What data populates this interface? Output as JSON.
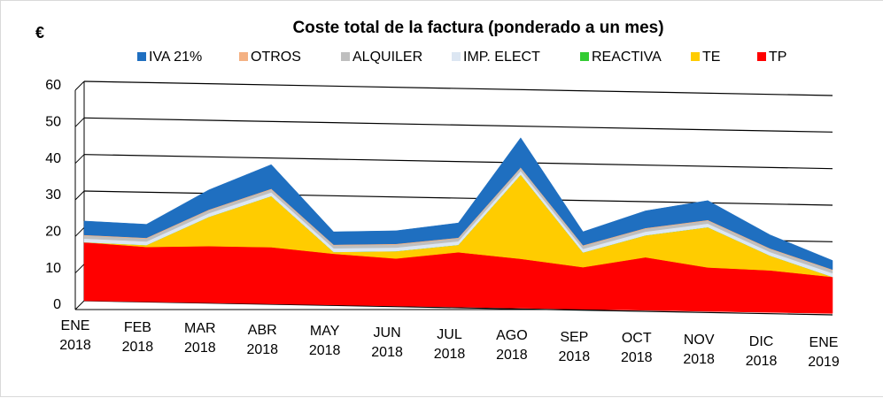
{
  "chart_data": {
    "type": "area",
    "stacked": true,
    "title": "Coste total de la factura (ponderado a un mes)",
    "y_label": "€",
    "categories": [
      "ENE 2018",
      "FEB 2018",
      "MAR 2018",
      "ABR 2018",
      "MAY 2018",
      "JUN 2018",
      "JUL 2018",
      "AGO 2018",
      "SEP 2018",
      "OCT 2018",
      "NOV 2018",
      "DIC 2018",
      "ENE 2019"
    ],
    "series": [
      {
        "name": "IVA 21%",
        "color": "#1f6fc0",
        "values": [
          3.8,
          3.7,
          5.4,
          6.6,
          3.5,
          3.6,
          4.0,
          8.1,
          3.7,
          4.7,
          5.3,
          3.7,
          2.5
        ]
      },
      {
        "name": "OTROS",
        "color": "#f4b183",
        "values": [
          0.2,
          0.2,
          0.2,
          0.2,
          0.2,
          0.2,
          0.2,
          0.2,
          0.2,
          0.2,
          0.2,
          0.2,
          0.2
        ]
      },
      {
        "name": "ALQUILER",
        "color": "#bfbfbf",
        "values": [
          0.8,
          0.8,
          0.8,
          0.8,
          0.8,
          0.8,
          0.8,
          0.8,
          0.8,
          0.8,
          0.8,
          0.8,
          0.8
        ]
      },
      {
        "name": "IMP. ELECT",
        "color": "#dce6f2",
        "values": [
          1.0,
          1.0,
          1.0,
          1.0,
          1.0,
          1.0,
          1.0,
          1.0,
          1.0,
          1.0,
          1.0,
          1.0,
          1.0
        ]
      },
      {
        "name": "REACTIVA",
        "color": "#33cc33",
        "values": [
          0,
          0,
          0,
          0,
          0,
          0,
          0,
          0,
          0,
          0,
          0,
          0,
          0
        ]
      },
      {
        "name": "TE",
        "color": "#ffcc00",
        "values": [
          0,
          0.5,
          8,
          14,
          0.5,
          2,
          2,
          23,
          4,
          6,
          11,
          4,
          0
        ]
      },
      {
        "name": "TP",
        "color": "#ff0000",
        "values": [
          16,
          15,
          15.5,
          15.5,
          14,
          13,
          15,
          13.5,
          11.5,
          14.5,
          12,
          11.5,
          10
        ]
      }
    ],
    "ylim": [
      0,
      60
    ],
    "yticks": [
      0,
      10,
      20,
      30,
      40,
      50,
      60
    ],
    "grid": true,
    "legend": "top"
  }
}
